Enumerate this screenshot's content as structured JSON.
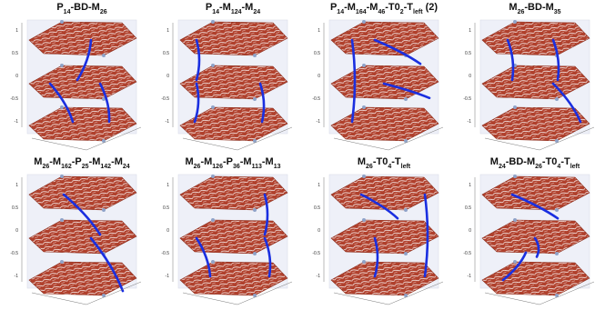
{
  "panels": [
    {
      "title": [
        {
          "t": "P"
        },
        {
          "s": "14"
        },
        {
          "t": "-BD-M"
        },
        {
          "s": "26"
        }
      ]
    },
    {
      "title": [
        {
          "t": "P"
        },
        {
          "s": "14"
        },
        {
          "t": "-M"
        },
        {
          "s": "124"
        },
        {
          "t": "-M"
        },
        {
          "s": "24"
        }
      ]
    },
    {
      "title": [
        {
          "t": "P"
        },
        {
          "s": "14"
        },
        {
          "t": "-M"
        },
        {
          "s": "164"
        },
        {
          "t": "-M"
        },
        {
          "s": "46"
        },
        {
          "t": "-T0"
        },
        {
          "s": "2"
        },
        {
          "t": "-T"
        },
        {
          "s": "left"
        },
        {
          "t": " (2)"
        }
      ]
    },
    {
      "title": [
        {
          "t": "M"
        },
        {
          "s": "26"
        },
        {
          "t": "-BD-M"
        },
        {
          "s": "35"
        }
      ]
    },
    {
      "title": [
        {
          "t": "M"
        },
        {
          "s": "26"
        },
        {
          "t": "-M"
        },
        {
          "s": "162"
        },
        {
          "t": "-P"
        },
        {
          "s": "25"
        },
        {
          "t": "-M"
        },
        {
          "s": "142"
        },
        {
          "t": "-M"
        },
        {
          "s": "24"
        }
      ]
    },
    {
      "title": [
        {
          "t": "M"
        },
        {
          "s": "26"
        },
        {
          "t": "-M"
        },
        {
          "s": "126"
        },
        {
          "t": "-P"
        },
        {
          "s": "36"
        },
        {
          "t": "-M"
        },
        {
          "s": "113"
        },
        {
          "t": "-M"
        },
        {
          "s": "13"
        }
      ]
    },
    {
      "title": [
        {
          "t": "M"
        },
        {
          "s": "26"
        },
        {
          "t": "-T0"
        },
        {
          "s": "4"
        },
        {
          "t": "-T"
        },
        {
          "s": "left"
        }
      ]
    },
    {
      "title": [
        {
          "t": "M"
        },
        {
          "s": "24"
        },
        {
          "t": "-BD-M"
        },
        {
          "s": "26"
        },
        {
          "t": "-T0"
        },
        {
          "s": "4"
        },
        {
          "t": "-T"
        },
        {
          "s": "left"
        }
      ]
    }
  ],
  "zticks": [
    "1",
    "0.5",
    "0",
    "-0.5",
    "-1"
  ]
}
